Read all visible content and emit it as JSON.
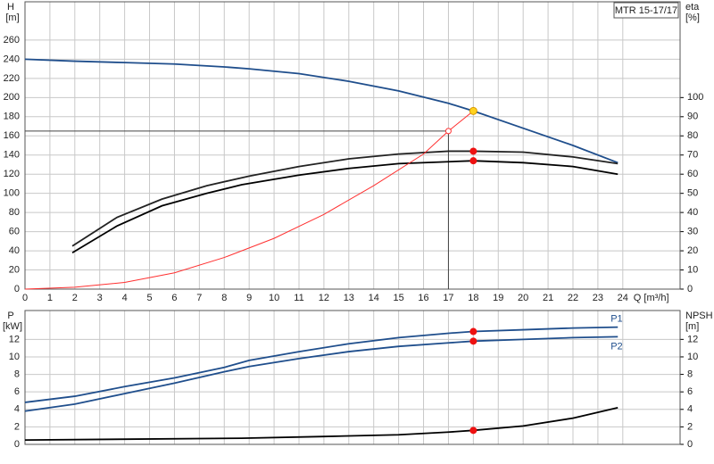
{
  "chart_data": [
    {
      "type": "line",
      "legend_text": "MTR 15-17/17",
      "ylabel": "H",
      "yunit": "[m]",
      "y2label": "eta",
      "y2unit": "[%]",
      "xlabel": "Q [m³/h]",
      "xlim": [
        0,
        26.3
      ],
      "xticks": [
        0,
        1,
        2,
        3,
        4,
        5,
        6,
        7,
        8,
        9,
        10,
        11,
        12,
        13,
        14,
        15,
        16,
        17,
        18,
        19,
        20,
        21,
        22,
        23,
        24
      ],
      "ylim": [
        0,
        300
      ],
      "yticks": [
        0,
        20,
        40,
        60,
        80,
        100,
        120,
        140,
        160,
        180,
        200,
        220,
        240,
        260
      ],
      "y2lim": [
        0,
        150
      ],
      "y2ticks": [
        0,
        10,
        20,
        30,
        40,
        50,
        60,
        70,
        80,
        90,
        100
      ],
      "grid": true,
      "series": [
        {
          "color": "#1f4e8c",
          "x": [
            0,
            2,
            4,
            6,
            8,
            9,
            11,
            13,
            15,
            17,
            18,
            20,
            22,
            23.8
          ],
          "values": [
            240,
            238,
            236.5,
            235,
            232,
            230,
            225,
            217,
            207,
            194,
            186,
            168,
            150,
            132
          ]
        },
        {
          "color": "#222222",
          "axis": "y2",
          "x": [
            1.9,
            3.7,
            5.5,
            7.3,
            9,
            11,
            13,
            15,
            17,
            18,
            20,
            22,
            23.8
          ],
          "values": [
            22.5,
            37.5,
            47,
            54,
            59,
            64,
            68,
            70.5,
            72,
            72,
            71.5,
            69,
            65.5
          ]
        },
        {
          "color": "#000000",
          "axis": "y2",
          "x": [
            1.9,
            3.7,
            5.5,
            7.3,
            8.7,
            11,
            13,
            15,
            17,
            18,
            20,
            22,
            23.8
          ],
          "values": [
            19,
            33,
            43.5,
            50,
            54.5,
            59.5,
            63,
            65.5,
            66.5,
            67,
            66,
            64,
            60
          ]
        },
        {
          "color": "#ff3030",
          "x": [
            0,
            2,
            4,
            6,
            8,
            10,
            12,
            14,
            16,
            17,
            18
          ],
          "values": [
            0,
            2,
            7,
            17,
            33,
            53,
            78,
            108,
            141,
            165,
            186
          ]
        }
      ],
      "points": [
        {
          "x": 18,
          "y": 186,
          "color": "#ffd21f"
        },
        {
          "x": 18,
          "y": 72,
          "axis": "y2",
          "color": "#ee1111"
        },
        {
          "x": 18,
          "y": 67,
          "axis": "y2",
          "color": "#ee1111"
        }
      ],
      "reference": {
        "x": 17,
        "y": 165
      }
    },
    {
      "type": "line",
      "ylabel": "P",
      "yunit": "[kW]",
      "y2label": "NPSH",
      "y2unit": "[m]",
      "xlim": [
        0,
        26.3
      ],
      "xticks": [
        0,
        1,
        2,
        3,
        4,
        5,
        6,
        7,
        8,
        9,
        10,
        11,
        12,
        13,
        14,
        15,
        16,
        17,
        18,
        19,
        20,
        21,
        22,
        23,
        24
      ],
      "ylim": [
        0,
        15.3
      ],
      "yticks": [
        0,
        2,
        4,
        6,
        8,
        10,
        12
      ],
      "y2lim": [
        0,
        15.3
      ],
      "y2ticks": [
        0,
        2,
        4,
        6,
        8,
        10,
        12
      ],
      "grid": true,
      "series": [
        {
          "name": "P1",
          "color": "#1f4e8c",
          "x": [
            0,
            2,
            4,
            6,
            8,
            9,
            11,
            13,
            15,
            17,
            18,
            20,
            22,
            23.8
          ],
          "values": [
            4.8,
            5.5,
            6.6,
            7.6,
            8.8,
            9.6,
            10.6,
            11.5,
            12.2,
            12.7,
            12.9,
            13.1,
            13.3,
            13.4
          ]
        },
        {
          "name": "P2",
          "color": "#1f4e8c",
          "x": [
            0,
            2,
            4,
            6,
            8,
            9,
            11,
            13,
            15,
            17,
            18,
            20,
            22,
            23.8
          ],
          "values": [
            3.8,
            4.6,
            5.8,
            7.0,
            8.3,
            8.9,
            9.8,
            10.6,
            11.2,
            11.6,
            11.8,
            12.0,
            12.2,
            12.3
          ]
        },
        {
          "color": "#000000",
          "axis": "y2",
          "x": [
            0,
            8.7,
            12,
            15,
            17,
            18,
            20,
            22,
            23.8
          ],
          "values": [
            0.5,
            0.7,
            0.9,
            1.1,
            1.4,
            1.6,
            2.1,
            3.0,
            4.2
          ]
        }
      ],
      "points": [
        {
          "x": 18,
          "y": 12.9,
          "color": "#ee1111"
        },
        {
          "x": 18,
          "y": 11.8,
          "color": "#ee1111"
        },
        {
          "x": 18,
          "y": 1.6,
          "axis": "y2",
          "color": "#ee1111"
        }
      ]
    }
  ]
}
